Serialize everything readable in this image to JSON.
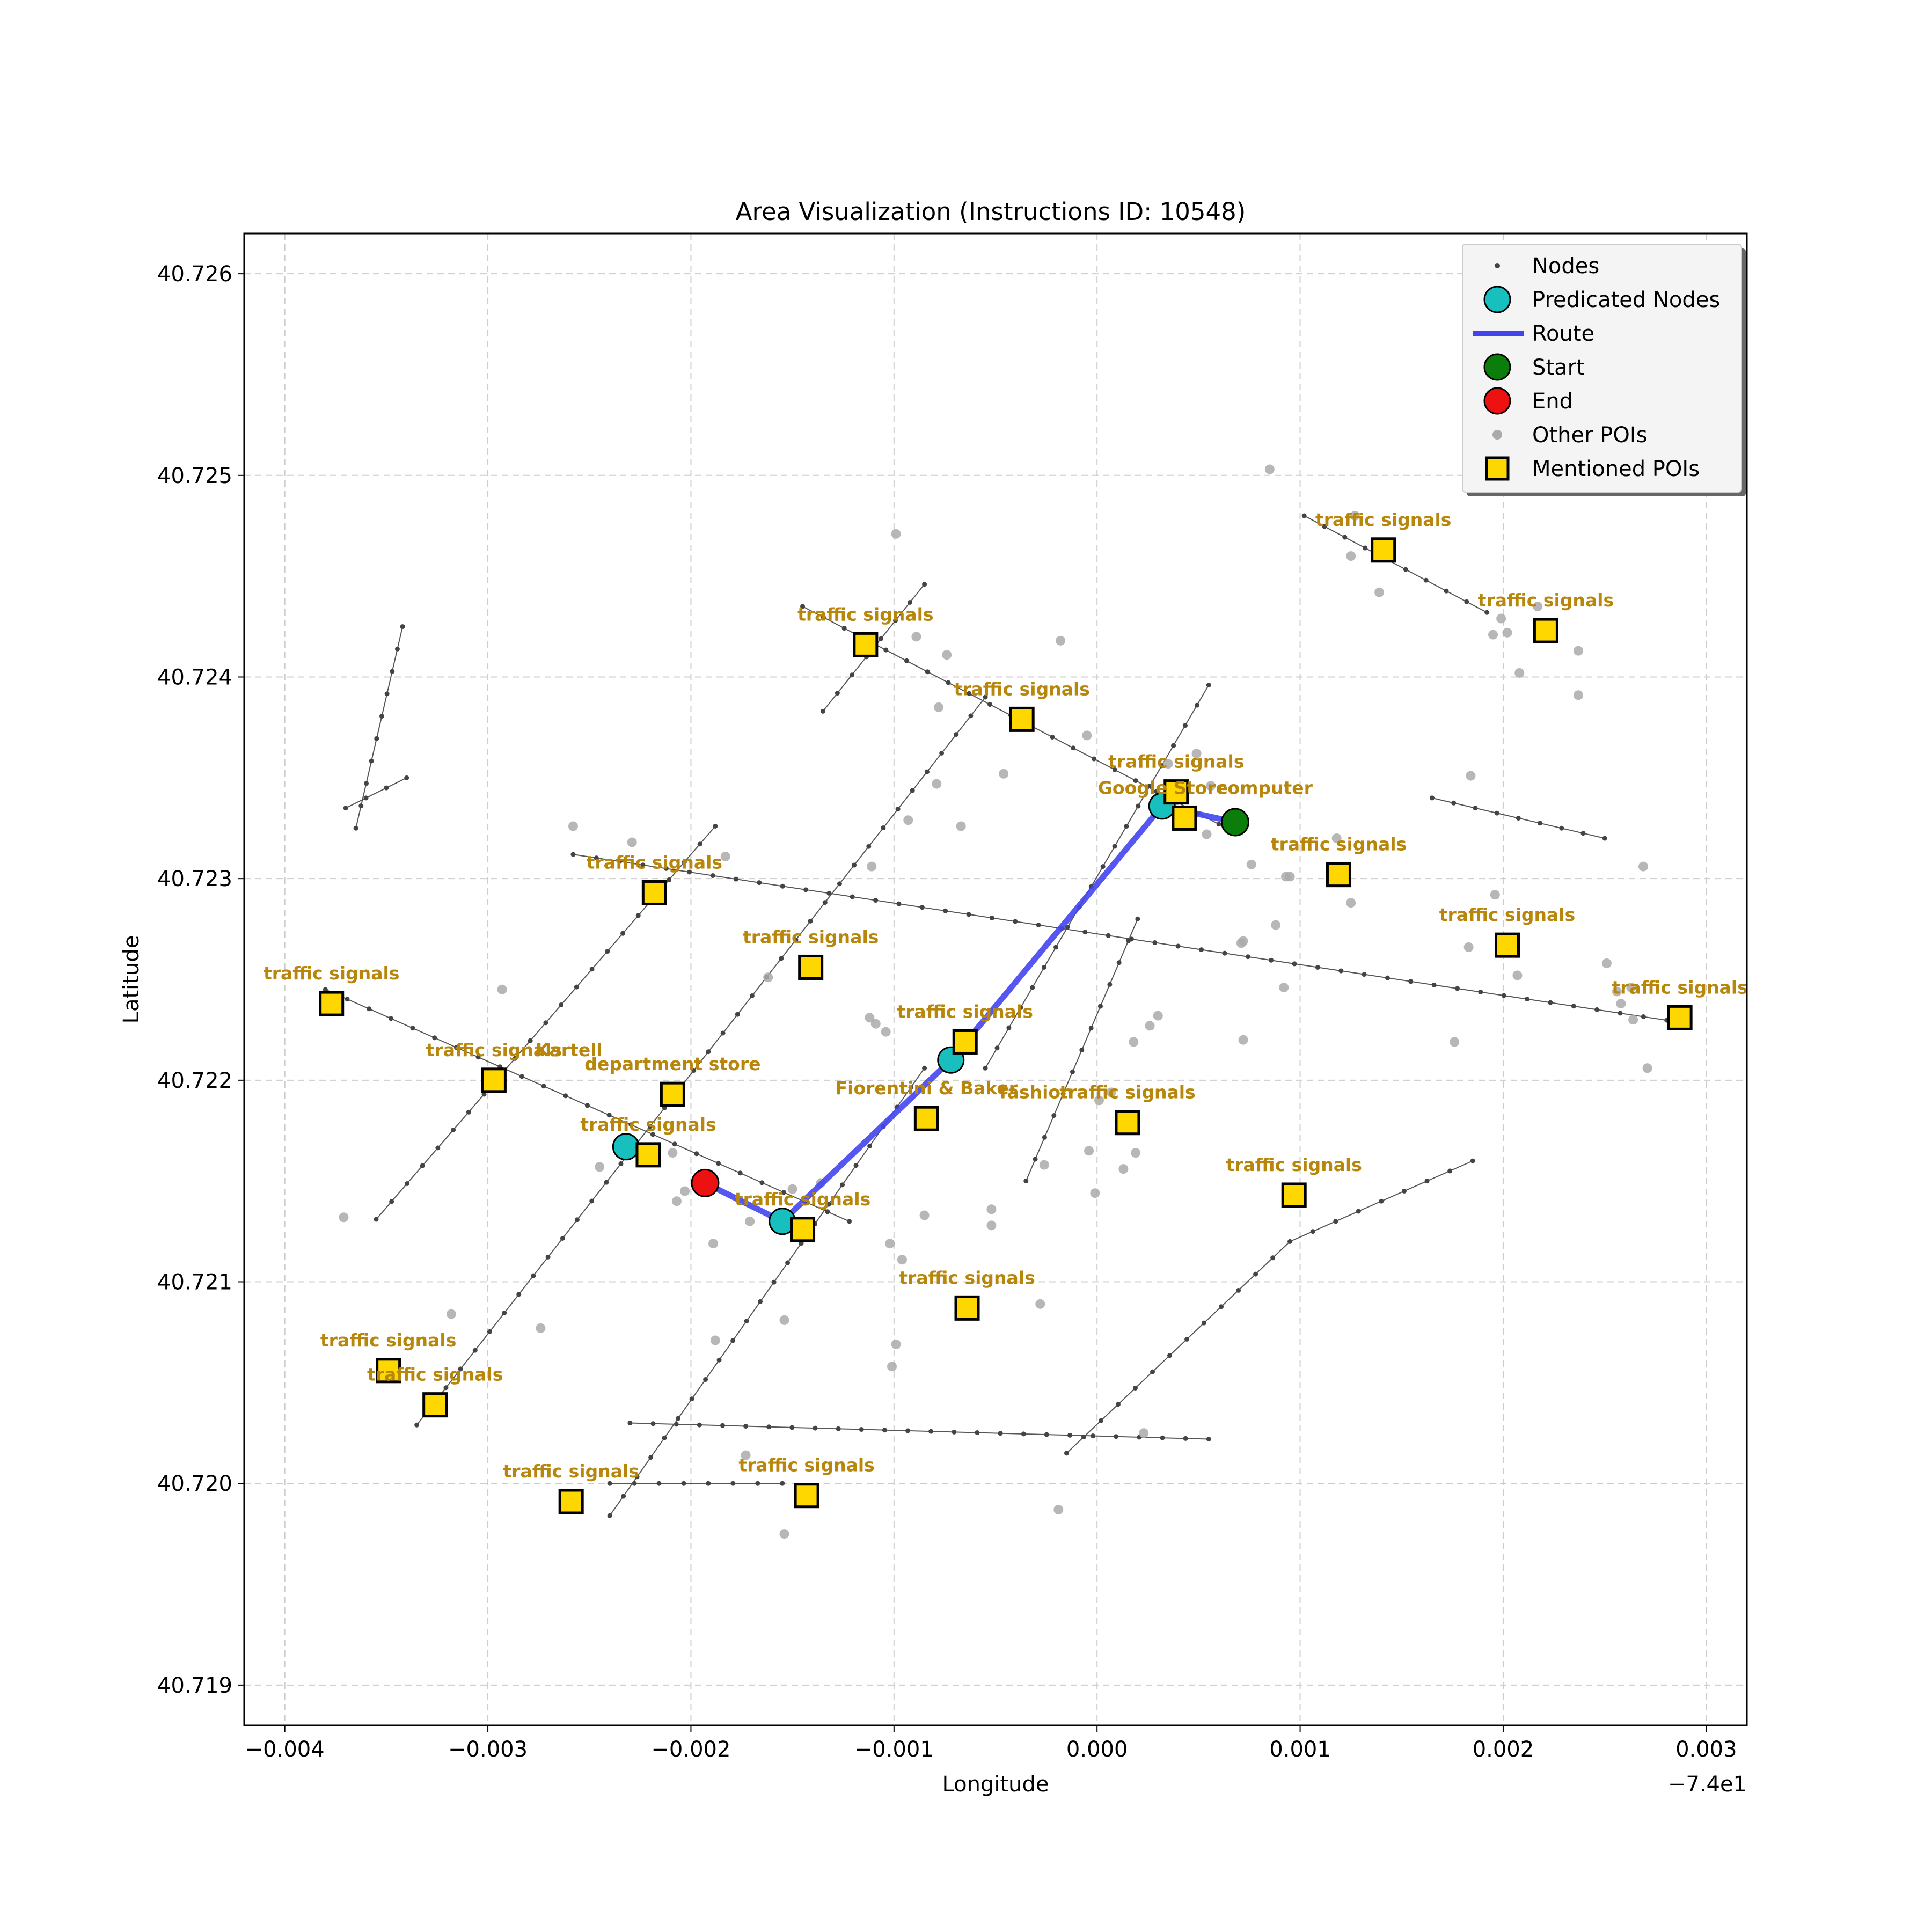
{
  "chart_data": {
    "type": "scatter",
    "title": "Area Visualization (Instructions ID: 10548)",
    "xlabel": "Longitude",
    "ylabel": "Latitude",
    "x_offset_label": "−7.4e1",
    "xlim": [
      -0.0042,
      0.0032
    ],
    "ylim": [
      40.7188,
      40.7262
    ],
    "x_ticks": [
      -0.004,
      -0.003,
      -0.002,
      -0.001,
      0.0,
      0.001,
      0.002,
      0.003
    ],
    "x_tick_labels": [
      "−0.004",
      "−0.003",
      "−0.002",
      "−0.001",
      "0.000",
      "0.001",
      "0.002",
      "0.003"
    ],
    "y_ticks": [
      40.719,
      40.72,
      40.721,
      40.722,
      40.723,
      40.724,
      40.725,
      40.726
    ],
    "y_tick_labels": [
      "40.719",
      "40.720",
      "40.721",
      "40.722",
      "40.723",
      "40.724",
      "40.725",
      "40.726"
    ],
    "grid": true,
    "legend_position": "top-right",
    "legend": [
      {
        "label": "Nodes",
        "marker": "small-dot",
        "color": "#444444"
      },
      {
        "label": "Predicated Nodes",
        "marker": "circle",
        "color": "#17bfbf"
      },
      {
        "label": "Route",
        "marker": "line",
        "color": "#4444ee"
      },
      {
        "label": "Start",
        "marker": "circle",
        "color": "#0a7d0a"
      },
      {
        "label": "End",
        "marker": "circle",
        "color": "#ee1111"
      },
      {
        "label": "Other POIs",
        "marker": "dot",
        "color": "#aaaaaa"
      },
      {
        "label": "Mentioned POIs",
        "marker": "square",
        "color": "#ffd700"
      }
    ],
    "colors": {
      "nodes": "#444444",
      "edges": "#555555",
      "predicated": "#17bfbf",
      "route": "#4444ee",
      "start": "#0a7d0a",
      "end": "#ee1111",
      "other_poi": "#aaaaaa",
      "mentioned_poi": "#ffd700",
      "poi_label": "#b8860b",
      "grid": "#cccccc"
    },
    "streets": [
      [
        [
          -0.00365,
          40.72325
        ],
        [
          -0.00342,
          40.72425
        ]
      ],
      [
        [
          -0.0037,
          40.72335
        ],
        [
          -0.0034,
          40.7235
        ]
      ],
      [
        [
          -0.00145,
          40.72435
        ],
        [
          0.0006,
          40.72327
        ]
      ],
      [
        [
          0.00102,
          40.7248
        ],
        [
          0.00192,
          40.72432
        ]
      ],
      [
        [
          -0.00258,
          40.72312
        ],
        [
          0.00292,
          40.72228
        ]
      ],
      [
        [
          -0.0038,
          40.72245
        ],
        [
          -0.00122,
          40.7213
        ]
      ],
      [
        [
          -0.0023,
          40.7203
        ],
        [
          0.00055,
          40.72022
        ]
      ],
      [
        [
          -0.0024,
          40.72
        ],
        [
          -0.00155,
          40.72
        ]
      ],
      [
        [
          -0.00355,
          40.72131
        ],
        [
          -0.00188,
          40.72326
        ]
      ],
      [
        [
          -0.00335,
          40.72029
        ],
        [
          -0.00055,
          40.7239
        ]
      ],
      [
        [
          -0.0024,
          40.71984
        ],
        [
          -0.00085,
          40.72206
        ]
      ],
      [
        [
          -0.00055,
          40.72206
        ],
        [
          0.00055,
          40.72396
        ]
      ],
      [
        [
          -0.00135,
          40.72383
        ],
        [
          -0.00085,
          40.72446
        ]
      ],
      [
        [
          -0.00035,
          40.7215
        ],
        [
          0.0002,
          40.7228
        ]
      ],
      [
        [
          -0.00015,
          40.72015
        ],
        [
          0.00095,
          40.7212
        ]
      ],
      [
        [
          0.00095,
          40.7212
        ],
        [
          0.00185,
          40.7216
        ]
      ],
      [
        [
          0.00165,
          40.7234
        ],
        [
          0.0025,
          40.7232
        ]
      ]
    ],
    "route": [
      [
        0.00068,
        40.72328
      ],
      [
        0.00032,
        40.72336
      ],
      [
        -0.00072,
        40.7221
      ],
      [
        -0.00155,
        40.7213
      ],
      [
        -0.00193,
        40.72149
      ]
    ],
    "predicated_nodes": [
      [
        0.00032,
        40.72336
      ],
      [
        -0.00072,
        40.7221
      ],
      [
        -0.00155,
        40.7213
      ],
      [
        -0.00232,
        40.72167
      ]
    ],
    "start": [
      0.00068,
      40.72328
    ],
    "end": [
      -0.00193,
      40.72149
    ],
    "other_pois": [
      [
        -0.00099,
        40.72471
      ],
      [
        -0.00089,
        40.7242
      ],
      [
        -0.00074,
        40.72411
      ],
      [
        -0.00078,
        40.72385
      ],
      [
        0.00127,
        40.7248
      ],
      [
        0.00125,
        40.7246
      ],
      [
        0.00139,
        40.72442
      ],
      [
        0.00195,
        40.72421
      ],
      [
        0.00199,
        40.72429
      ],
      [
        0.00202,
        40.72422
      ],
      [
        0.00208,
        40.72402
      ],
      [
        0.00217,
        40.72435
      ],
      [
        0.00237,
        40.72413
      ],
      [
        0.00237,
        40.72391
      ],
      [
        0.00184,
        40.72351
      ],
      [
        0.00085,
        40.72503
      ],
      [
        -0.00018,
        40.72418
      ],
      [
        -5e-05,
        40.72371
      ],
      [
        -0.00046,
        40.72352
      ],
      [
        -0.00079,
        40.72347
      ],
      [
        -0.00093,
        40.72329
      ],
      [
        -0.00067,
        40.72326
      ],
      [
        -0.00111,
        40.72306
      ],
      [
        0.00035,
        40.72357
      ],
      [
        0.00049,
        40.72362
      ],
      [
        0.0004,
        40.72346
      ],
      [
        0.00056,
        40.72346
      ],
      [
        0.00054,
        40.72322
      ],
      [
        0.00076,
        40.72307
      ],
      [
        0.00093,
        40.72301
      ],
      [
        0.00118,
        40.7232
      ],
      [
        0.00125,
        40.72288
      ],
      [
        0.00088,
        40.72277
      ],
      [
        0.00071,
        40.72268
      ],
      [
        0.00092,
        40.72246
      ],
      [
        0.0003,
        40.72232
      ],
      [
        0.00026,
        40.72227
      ],
      [
        0.00018,
        40.72219
      ],
      [
        0.00072,
        40.7222
      ],
      [
        0.00183,
        40.72266
      ],
      [
        0.00196,
        40.72292
      ],
      [
        0.00207,
        40.72252
      ],
      [
        0.00251,
        40.72258
      ],
      [
        0.00256,
        40.72244
      ],
      [
        0.00258,
        40.72238
      ],
      [
        0.00263,
        40.72246
      ],
      [
        0.00264,
        40.7223
      ],
      [
        0.00269,
        40.72306
      ],
      [
        0.00271,
        40.72206
      ],
      [
        0.00176,
        40.72219
      ],
      [
        -0.00258,
        40.72326
      ],
      [
        -0.00229,
        40.72318
      ],
      [
        -0.00183,
        40.72311
      ],
      [
        -0.00293,
        40.72245
      ],
      [
        -0.00112,
        40.72231
      ],
      [
        -0.00109,
        40.72228
      ],
      [
        -0.00104,
        40.72224
      ],
      [
        -0.00162,
        40.72251
      ],
      [
        -0.00209,
        40.72164
      ],
      [
        -0.00245,
        40.72157
      ],
      [
        -0.00203,
        40.72145
      ],
      [
        -0.00207,
        40.7214
      ],
      [
        -0.00136,
        40.72149
      ],
      [
        -0.0015,
        40.72146
      ],
      [
        -0.00171,
        40.7213
      ],
      [
        -0.00085,
        40.72133
      ],
      [
        -0.00052,
        40.72136
      ],
      [
        -0.00052,
        40.72128
      ],
      [
        -0.00028,
        40.72089
      ],
      [
        -0.00102,
        40.72119
      ],
      [
        -0.00096,
        40.72111
      ],
      [
        -0.00099,
        40.72069
      ],
      [
        -0.00101,
        40.72058
      ],
      [
        -0.00154,
        40.72081
      ],
      [
        -0.00189,
        40.72119
      ],
      [
        -0.00188,
        40.72071
      ],
      [
        -0.00173,
        40.72014
      ],
      [
        -0.00154,
        40.71975
      ],
      [
        -0.00371,
        40.72132
      ],
      [
        -0.00318,
        40.72084
      ],
      [
        -0.00274,
        40.72077
      ],
      [
        -0.00019,
        40.71987
      ],
      [
        1e-05,
        40.7219
      ],
      [
        7e-05,
        40.72194
      ],
      [
        -4e-05,
        40.72165
      ],
      [
        -0.00026,
        40.72158
      ],
      [
        -1e-05,
        40.72144
      ],
      [
        0.00013,
        40.72156
      ],
      [
        0.00019,
        40.72164
      ],
      [
        0.00023,
        40.72025
      ],
      [
        0.00072,
        40.72269
      ],
      [
        0.00095,
        40.72301
      ]
    ],
    "mentioned_pois": [
      {
        "label": "traffic signals",
        "x": -0.00114,
        "y": 40.72416
      },
      {
        "label": "traffic signals",
        "x": -0.00037,
        "y": 40.72379
      },
      {
        "label": "traffic signals",
        "x": 0.00039,
        "y": 40.72343
      },
      {
        "label": "Google Store",
        "x": 0.00043,
        "y": 40.7233
      },
      {
        "label": "computer",
        "x": 0.00043,
        "y": 40.7233
      },
      {
        "label": "traffic signals",
        "x": 0.00141,
        "y": 40.72463
      },
      {
        "label": "traffic signals",
        "x": 0.00221,
        "y": 40.72423
      },
      {
        "label": "traffic signals",
        "x": 0.00119,
        "y": 40.72302
      },
      {
        "label": "traffic signals",
        "x": 0.00202,
        "y": 40.72267
      },
      {
        "label": "traffic signals",
        "x": 0.00287,
        "y": 40.72231
      },
      {
        "label": "traffic signals",
        "x": -0.00218,
        "y": 40.72293
      },
      {
        "label": "traffic signals",
        "x": -0.00141,
        "y": 40.72256
      },
      {
        "label": "traffic signals",
        "x": -0.00377,
        "y": 40.72238
      },
      {
        "label": "traffic signals",
        "x": -0.00297,
        "y": 40.722
      },
      {
        "label": "Kartell",
        "x": -0.00297,
        "y": 40.722
      },
      {
        "label": "department store",
        "x": -0.00209,
        "y": 40.72193
      },
      {
        "label": "traffic signals",
        "x": -0.00065,
        "y": 40.72219
      },
      {
        "label": "Fiorentini & Baker",
        "x": -0.00084,
        "y": 40.72181
      },
      {
        "label": "fashion",
        "x": 0.00015,
        "y": 40.72179
      },
      {
        "label": "traffic signals",
        "x": 0.00015,
        "y": 40.72179
      },
      {
        "label": "traffic signals",
        "x": -0.00221,
        "y": 40.72163
      },
      {
        "label": "traffic signals",
        "x": -0.00145,
        "y": 40.72126
      },
      {
        "label": "traffic signals",
        "x": 0.00097,
        "y": 40.72143
      },
      {
        "label": "traffic signals",
        "x": -0.00064,
        "y": 40.72087
      },
      {
        "label": "traffic signals",
        "x": -0.00349,
        "y": 40.72056
      },
      {
        "label": "traffic signals",
        "x": -0.00326,
        "y": 40.72039
      },
      {
        "label": "traffic signals",
        "x": -0.00259,
        "y": 40.71991
      },
      {
        "label": "traffic signals",
        "x": -0.00143,
        "y": 40.71994
      }
    ]
  }
}
